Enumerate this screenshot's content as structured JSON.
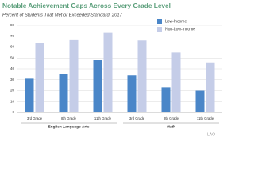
{
  "chart_data": {
    "type": "bar",
    "title": "Notable Achievement Gaps Across Every Grade Level",
    "subtitle": "Percent of Students That Met or Exceeded Standard, 2017",
    "categories": [
      "3rd Grade",
      "8th Grade",
      "11th Grade",
      "3rd Grade",
      "8th Grade",
      "11th Grade"
    ],
    "group_labels": [
      "English Language Arts",
      "Math"
    ],
    "series": [
      {
        "name": "Low-Income",
        "color": "#4a86c8",
        "values": [
          31,
          35,
          48,
          34,
          23,
          20
        ]
      },
      {
        "name": "Non-Low-Income",
        "color": "#c5cde8",
        "values": [
          64,
          67,
          73,
          66,
          55,
          46
        ]
      }
    ],
    "ylim": [
      0,
      80
    ],
    "yticks": [
      0,
      10,
      20,
      30,
      40,
      50,
      60,
      70,
      80
    ],
    "grid": true,
    "footer": "LAO"
  }
}
